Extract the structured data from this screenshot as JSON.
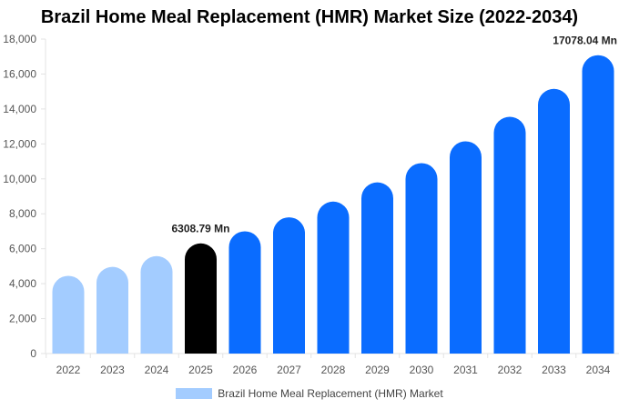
{
  "chart_data": {
    "type": "bar",
    "title": "Brazil Home Meal Replacement (HMR) Market Size (2022-2034)",
    "categories": [
      "2022",
      "2023",
      "2024",
      "2025",
      "2026",
      "2027",
      "2028",
      "2029",
      "2030",
      "2031",
      "2032",
      "2033",
      "2034"
    ],
    "series": [
      {
        "name": "Brazil Home Meal Replacement (HMR) Market",
        "values": [
          4450,
          4960,
          5580,
          6308.79,
          7000,
          7800,
          8700,
          9800,
          10900,
          12150,
          13550,
          15150,
          17078.04
        ]
      }
    ],
    "bar_colors": [
      "#a3ccff",
      "#a3ccff",
      "#a3ccff",
      "#000000",
      "#0a6cff",
      "#0a6cff",
      "#0a6cff",
      "#0a6cff",
      "#0a6cff",
      "#0a6cff",
      "#0a6cff",
      "#0a6cff",
      "#0a6cff"
    ],
    "legend_color": "#a3ccff",
    "yticks": [
      "0",
      "2,000",
      "4,000",
      "6,000",
      "8,000",
      "10,000",
      "12,000",
      "14,000",
      "16,000",
      "18,000"
    ],
    "ylim": [
      0,
      18000
    ],
    "annotations": [
      {
        "index": 3,
        "text": "6308.79 Mn"
      },
      {
        "index": 12,
        "text": "17078.04 Mn"
      }
    ],
    "legend_position": "bottom",
    "grid": false
  }
}
